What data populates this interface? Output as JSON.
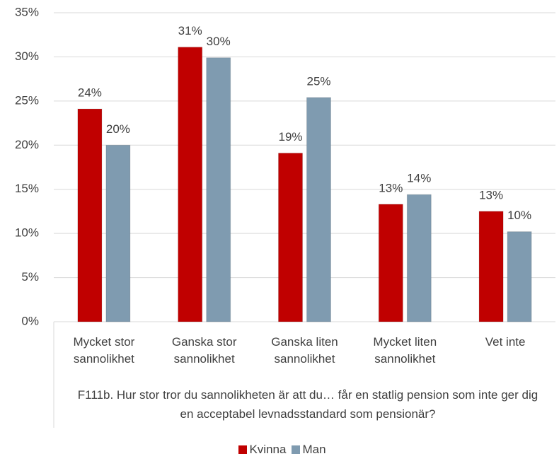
{
  "chart_data": {
    "type": "bar",
    "x_label": "F111b. Hur stor tror du sannolikheten är att du… får en statlig pension som inte ger dig en acceptabel levnadsstandard som pensionär?",
    "categories": [
      "Mycket stor sannolikhet",
      "Ganska stor sannolikhet",
      "Ganska liten sannolikhet",
      "Mycket liten sannolikhet",
      "Vet inte"
    ],
    "series": [
      {
        "name": "Kvinna",
        "color": "#c00000",
        "values": [
          24.1,
          31.1,
          19.1,
          13.3,
          12.5
        ],
        "value_labels": [
          "24%",
          "31%",
          "19%",
          "13%",
          "13%"
        ]
      },
      {
        "name": "Man",
        "color": "#7f9bb0",
        "values": [
          20.0,
          29.9,
          25.4,
          14.4,
          10.2
        ],
        "value_labels": [
          "20%",
          "30%",
          "25%",
          "14%",
          "10%"
        ]
      }
    ],
    "ylim": [
      0,
      35
    ],
    "yticks": [
      {
        "value": 0,
        "label": "0%"
      },
      {
        "value": 5,
        "label": "5%"
      },
      {
        "value": 10,
        "label": "10%"
      },
      {
        "value": 15,
        "label": "15%"
      },
      {
        "value": 20,
        "label": "20%"
      },
      {
        "value": 25,
        "label": "25%"
      },
      {
        "value": 30,
        "label": "30%"
      },
      {
        "value": 35,
        "label": "35%"
      }
    ],
    "grid": true,
    "legend": "bottom"
  }
}
